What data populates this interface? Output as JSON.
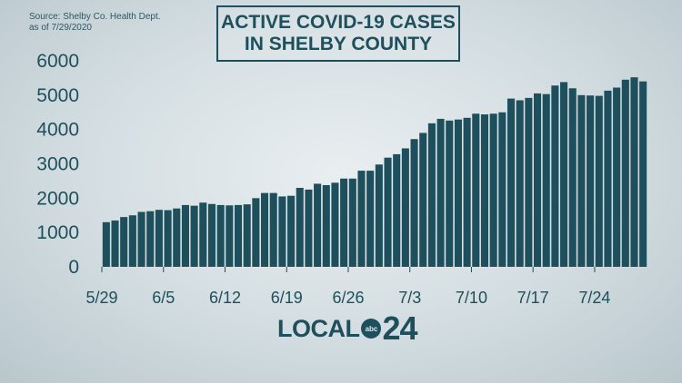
{
  "source": {
    "line1": "Source:  Shelby Co. Health Dept.",
    "line2": "as of 7/29/2020"
  },
  "title": {
    "line1": "ACTIVE COVID-19 CASES",
    "line2": "IN SHELBY COUNTY"
  },
  "logo": {
    "word": "LOCAL",
    "network": "abc",
    "number": "24"
  },
  "colors": {
    "bar": "#1e4f5c",
    "text": "#1e4f5c"
  },
  "chart_data": {
    "type": "bar",
    "title": "ACTIVE COVID-19 CASES IN SHELBY COUNTY",
    "xlabel": "",
    "ylabel": "",
    "ylim": [
      0,
      6000
    ],
    "yticks": [
      0,
      1000,
      2000,
      3000,
      4000,
      5000,
      6000
    ],
    "xtick_labels": [
      "5/29",
      "6/5",
      "6/12",
      "6/19",
      "6/26",
      "7/3",
      "7/10",
      "7/17",
      "7/24"
    ],
    "grid": false,
    "legend": "none",
    "categories": [
      "5/29",
      "5/30",
      "5/31",
      "6/1",
      "6/2",
      "6/3",
      "6/4",
      "6/5",
      "6/6",
      "6/7",
      "6/8",
      "6/9",
      "6/10",
      "6/11",
      "6/12",
      "6/13",
      "6/14",
      "6/15",
      "6/16",
      "6/17",
      "6/18",
      "6/19",
      "6/20",
      "6/21",
      "6/22",
      "6/23",
      "6/24",
      "6/25",
      "6/26",
      "6/27",
      "6/28",
      "6/29",
      "6/30",
      "7/1",
      "7/2",
      "7/3",
      "7/4",
      "7/5",
      "7/6",
      "7/7",
      "7/8",
      "7/9",
      "7/10",
      "7/11",
      "7/12",
      "7/13",
      "7/14",
      "7/15",
      "7/16",
      "7/17",
      "7/18",
      "7/19",
      "7/20",
      "7/21",
      "7/22",
      "7/23",
      "7/24",
      "7/25",
      "7/26",
      "7/27",
      "7/28",
      "7/29"
    ],
    "values": [
      1300,
      1350,
      1450,
      1500,
      1600,
      1620,
      1660,
      1650,
      1700,
      1800,
      1780,
      1870,
      1830,
      1800,
      1790,
      1800,
      1820,
      2000,
      2150,
      2150,
      2050,
      2070,
      2300,
      2250,
      2420,
      2380,
      2450,
      2570,
      2570,
      2800,
      2800,
      2980,
      3180,
      3280,
      3450,
      3720,
      3900,
      4180,
      4310,
      4260,
      4290,
      4340,
      4460,
      4440,
      4460,
      4500,
      4900,
      4850,
      4920,
      5050,
      5030,
      5280,
      5380,
      5200,
      5000,
      4990,
      4980,
      5130,
      5220,
      5450,
      5520,
      5400
    ]
  }
}
